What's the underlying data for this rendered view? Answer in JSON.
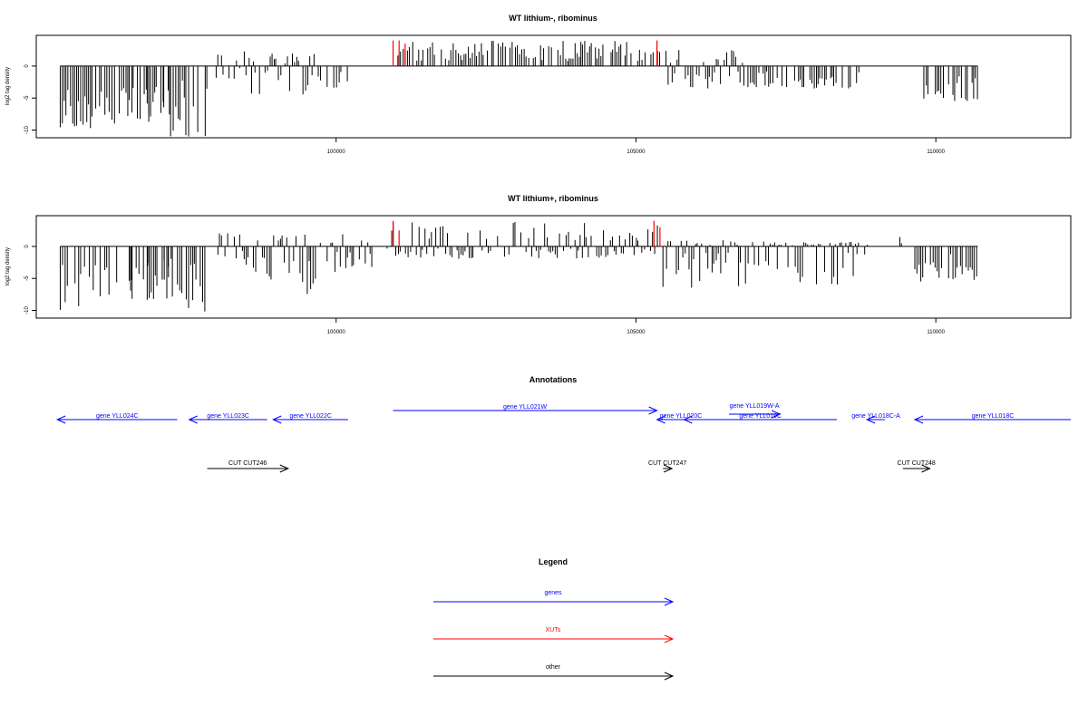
{
  "chart_data": [
    {
      "type": "bar",
      "title": "WT lithium-, ribominus",
      "xlabel": "",
      "ylabel": "log2 tag density",
      "xlim": [
        95000,
        112250
      ],
      "ylim": [
        -11.2,
        4.8
      ],
      "yticks": [
        0,
        -5,
        -10
      ],
      "xticks": [
        100000,
        105000,
        110000
      ],
      "grid": false,
      "segments": [
        {
          "start": 95400,
          "end": 95950,
          "min": -10.5,
          "max": 0
        },
        {
          "start": 95950,
          "end": 97250,
          "min": -9,
          "max": 0
        },
        {
          "start": 96550,
          "end": 96600,
          "min": -7.5,
          "max": 0
        },
        {
          "start": 96850,
          "end": 96900,
          "min": -9.2,
          "max": 0
        },
        {
          "start": 97100,
          "end": 97150,
          "min": -8.5,
          "max": 0
        },
        {
          "start": 97200,
          "end": 97850,
          "min": -11,
          "max": 0
        },
        {
          "start": 98000,
          "end": 98550,
          "min": -2,
          "max": 3
        },
        {
          "start": 98550,
          "end": 99750,
          "min": -4.5,
          "max": 2
        },
        {
          "start": 99850,
          "end": 100200,
          "min": -3.5,
          "max": 0
        },
        {
          "start": 101000,
          "end": 105400,
          "min": 0,
          "max": 4
        },
        {
          "start": 105500,
          "end": 106800,
          "min": -3.5,
          "max": 2.5
        },
        {
          "start": 106800,
          "end": 108800,
          "min": -3.5,
          "max": 0
        },
        {
          "start": 109800,
          "end": 110700,
          "min": -5.5,
          "max": 0
        }
      ],
      "red_marks": [
        {
          "x": 100950,
          "value": 4
        },
        {
          "x": 101050,
          "value": 4
        },
        {
          "x": 101150,
          "value": 3.5
        },
        {
          "x": 105350,
          "value": 4
        }
      ]
    },
    {
      "type": "bar",
      "title": "WT lithium+, ribominus",
      "xlabel": "",
      "ylabel": "log2 tag density",
      "xlim": [
        95000,
        112250
      ],
      "ylim": [
        -11.2,
        4.8
      ],
      "yticks": [
        0,
        -5,
        -10
      ],
      "xticks": [
        100000,
        105000,
        110000
      ],
      "grid": false,
      "segments": [
        {
          "start": 95400,
          "end": 95950,
          "min": -10,
          "max": 0
        },
        {
          "start": 95950,
          "end": 97250,
          "min": -8.5,
          "max": 0
        },
        {
          "start": 96550,
          "end": 96600,
          "min": -6.5,
          "max": 0
        },
        {
          "start": 96850,
          "end": 96900,
          "min": -8.5,
          "max": 0
        },
        {
          "start": 97100,
          "end": 97150,
          "min": -7.5,
          "max": 0
        },
        {
          "start": 97200,
          "end": 97850,
          "min": -10.5,
          "max": 0
        },
        {
          "start": 98000,
          "end": 98550,
          "min": -3,
          "max": 2.5
        },
        {
          "start": 98550,
          "end": 99750,
          "min": -7.5,
          "max": 2
        },
        {
          "start": 99850,
          "end": 100600,
          "min": -4,
          "max": 2
        },
        {
          "start": 100850,
          "end": 105400,
          "min": -2,
          "max": 4
        },
        {
          "start": 105450,
          "end": 106900,
          "min": -6.5,
          "max": 1
        },
        {
          "start": 106900,
          "end": 108900,
          "min": -6,
          "max": 0.8
        },
        {
          "start": 109400,
          "end": 109450,
          "min": 0,
          "max": 1.5
        },
        {
          "start": 109650,
          "end": 110700,
          "min": -5.5,
          "max": 0
        }
      ],
      "red_marks": [
        {
          "x": 100950,
          "value": 4
        },
        {
          "x": 101050,
          "value": 2.5
        },
        {
          "x": 105300,
          "value": 4
        },
        {
          "x": 105400,
          "value": 3
        }
      ]
    }
  ],
  "annotations": {
    "title": "Annotations",
    "genes": [
      {
        "label": "gene YLL024C",
        "start": 95350,
        "end": 97350,
        "direction": "left",
        "row": 1
      },
      {
        "label": "gene YLL023C",
        "start": 97550,
        "end": 98850,
        "direction": "left",
        "row": 1
      },
      {
        "label": "gene YLL022C",
        "start": 98950,
        "end": 100200,
        "direction": "left",
        "row": 1
      },
      {
        "label": "gene YLL021W",
        "start": 100950,
        "end": 105350,
        "direction": "right",
        "row": 0
      },
      {
        "label": "gene YLL020C",
        "start": 105350,
        "end": 106150,
        "direction": "left",
        "row": 1
      },
      {
        "label": "gene YLL019W-A",
        "start": 106550,
        "end": 107400,
        "direction": "right",
        "row": -1
      },
      {
        "label": "gene YLL019C",
        "start": 105800,
        "end": 108350,
        "direction": "left",
        "row": 1
      },
      {
        "label": "gene YLL018C-A",
        "start": 108850,
        "end": 109150,
        "direction": "left",
        "row": 1
      },
      {
        "label": "gene YLL018C",
        "start": 109650,
        "end": 112250,
        "direction": "left",
        "row": 1
      }
    ],
    "cuts": [
      {
        "label": "CUT CUT246",
        "start": 97850,
        "end": 99200,
        "direction": "right"
      },
      {
        "label": "CUT CUT247",
        "start": 105450,
        "end": 105600,
        "direction": "right"
      },
      {
        "label": "CUT CUT248",
        "start": 109450,
        "end": 109900,
        "direction": "right"
      }
    ]
  },
  "legend": {
    "title": "Legend",
    "items": [
      {
        "label": "genes",
        "color": "#0000ff"
      },
      {
        "label": "XUTs",
        "color": "#ff0000"
      },
      {
        "label": "other",
        "color": "#000000"
      }
    ]
  },
  "colors": {
    "gene": "#0000ff",
    "xut": "#ff0000",
    "other": "#000000",
    "bars": "#000000"
  }
}
